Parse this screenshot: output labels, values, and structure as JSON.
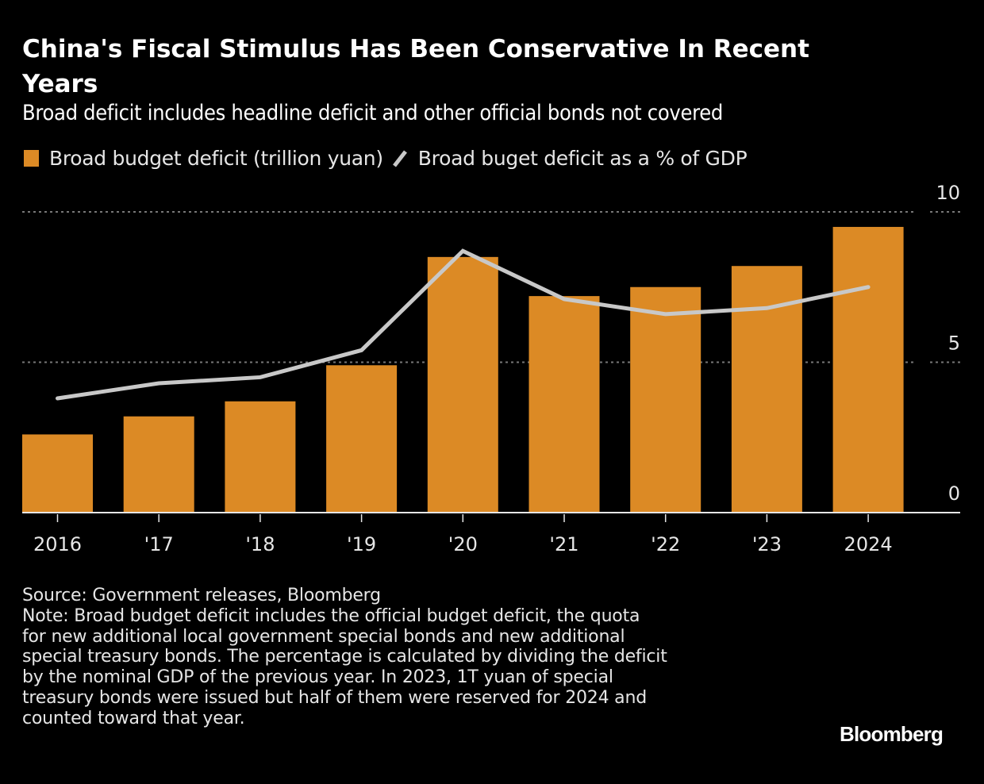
{
  "header": {
    "title": "China's Fiscal Stimulus Has Been Conservative In Recent Years",
    "subtitle": "Broad deficit includes headline deficit and other official bonds not covered"
  },
  "legend": [
    {
      "label": "Broad budget deficit (trillion yuan)",
      "type": "bar",
      "color": "#dc8a25"
    },
    {
      "label": "Broad buget deficit as a % of GDP",
      "type": "line",
      "color": "#c8c8c8"
    }
  ],
  "chart_data": {
    "type": "bar",
    "title": "China's Fiscal Stimulus Has Been Conservative In Recent Years",
    "subtitle": "Broad deficit includes headline deficit and other official bonds not covered",
    "categories": [
      "2016",
      "'17",
      "'18",
      "'19",
      "'20",
      "'21",
      "'22",
      "'23",
      "2024"
    ],
    "series": [
      {
        "name": "Broad budget deficit (trillion yuan)",
        "type": "bar",
        "color": "#dc8a25",
        "values": [
          2.6,
          3.2,
          3.7,
          4.9,
          8.5,
          7.2,
          7.5,
          8.2,
          9.5
        ]
      },
      {
        "name": "Broad buget deficit as a % of GDP",
        "type": "line",
        "color": "#c8c8c8",
        "values": [
          3.8,
          4.3,
          4.5,
          5.4,
          8.7,
          7.1,
          6.6,
          6.8,
          7.5
        ]
      }
    ],
    "xlabel": "",
    "ylabel": "",
    "ylim": [
      0,
      10
    ],
    "yticks": [
      "0",
      "5",
      "10"
    ],
    "ytick_values": [
      0,
      5,
      10
    ],
    "y_axis_side": "right",
    "grid": true,
    "legend_position": "top-left"
  },
  "footer": {
    "source": "Source: Government releases, Bloomberg",
    "note_lines": [
      "Note: Broad budget deficit includes the official budget deficit, the quota",
      "for new additional local government special bonds and new additional",
      "special treasury bonds. The percentage is calculated by dividing the deficit",
      "by the nominal GDP of the previous year. In 2023, 1T yuan of special",
      "treasury bonds were issued but half of them were reserved for 2024 and",
      "counted toward that year."
    ],
    "logo": "Bloomberg"
  }
}
